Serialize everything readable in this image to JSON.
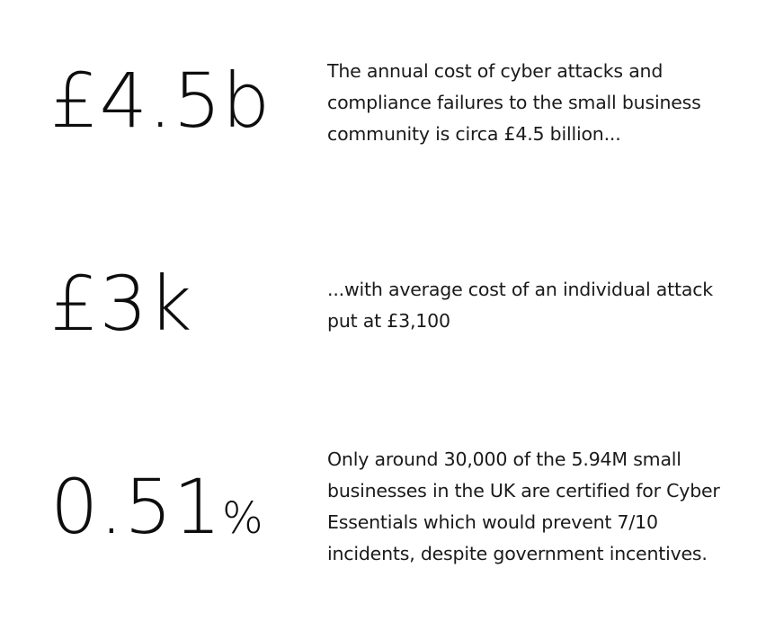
{
  "stats": [
    {
      "figure": "£4.5b",
      "suffix": "",
      "description_lines": [
        "The annual cost of cyber attacks and",
        "compliance failures to the small business",
        "community is circa £4.5 billion..."
      ]
    },
    {
      "figure": "£3k",
      "suffix": "",
      "description_lines": [
        "...with average cost of an individual attack",
        "put at £3,100"
      ]
    },
    {
      "figure": "0.51",
      "suffix": "%",
      "description_lines": [
        "Only around 30,000 of the 5.94M small",
        "businesses in the UK are certified for Cyber",
        "Essentials which would prevent 7/10",
        "incidents, despite government incentives."
      ]
    }
  ]
}
